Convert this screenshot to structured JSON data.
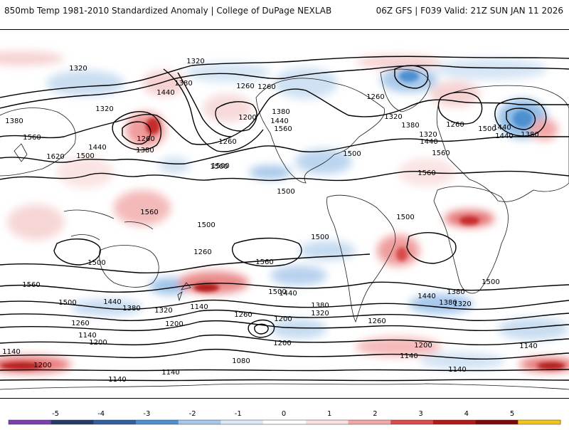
{
  "header": {
    "left_title": "850mb Temp 1981-2010 Standardized Anomaly | College of DuPage NEXLAB",
    "right_title": "06Z GFS | F039 Valid: 21Z SUN JAN 11 2026"
  },
  "contour_labels": [
    {
      "text": "1320",
      "id": "h1"
    },
    {
      "text": "1320",
      "id": "h2"
    },
    {
      "text": "1260",
      "id": "h3"
    },
    {
      "text": "1380",
      "id": "h4"
    },
    {
      "text": "1440",
      "id": "h5"
    },
    {
      "text": "1320",
      "id": "h6"
    },
    {
      "text": "1260",
      "id": "h7"
    },
    {
      "text": "1380",
      "id": "h8"
    },
    {
      "text": "1560",
      "id": "h9"
    },
    {
      "text": "1620",
      "id": "h10"
    },
    {
      "text": "1440",
      "id": "h11"
    },
    {
      "text": "1500",
      "id": "h12"
    },
    {
      "text": "1260",
      "id": "h13"
    },
    {
      "text": "1200",
      "id": "h14"
    },
    {
      "text": "1260",
      "id": "h15"
    },
    {
      "text": "1500",
      "id": "h16"
    },
    {
      "text": "1380",
      "id": "h17"
    },
    {
      "text": "1440",
      "id": "h18"
    },
    {
      "text": "1560",
      "id": "h19"
    },
    {
      "text": "1500",
      "id": "h20"
    },
    {
      "text": "1260",
      "id": "h21"
    },
    {
      "text": "1320",
      "id": "h22"
    },
    {
      "text": "1380",
      "id": "h23"
    },
    {
      "text": "1320",
      "id": "h24"
    },
    {
      "text": "1440",
      "id": "h25"
    },
    {
      "text": "1260",
      "id": "h26"
    },
    {
      "text": "1500",
      "id": "h27"
    },
    {
      "text": "1440",
      "id": "h28"
    },
    {
      "text": "1380",
      "id": "h29"
    },
    {
      "text": "1560",
      "id": "h30"
    },
    {
      "text": "1500",
      "id": "h31"
    },
    {
      "text": "1560",
      "id": "h32"
    },
    {
      "text": "1500",
      "id": "h33"
    },
    {
      "text": "1500",
      "id": "h34"
    },
    {
      "text": "1500",
      "id": "h35"
    },
    {
      "text": "1500",
      "id": "h36"
    },
    {
      "text": "1560",
      "id": "h37"
    },
    {
      "text": "1560",
      "id": "h38"
    },
    {
      "text": "1500",
      "id": "h39"
    },
    {
      "text": "1560",
      "id": "h40"
    },
    {
      "text": "1500",
      "id": "h41"
    },
    {
      "text": "1440",
      "id": "h42"
    },
    {
      "text": "1380",
      "id": "h43"
    },
    {
      "text": "1320",
      "id": "h44"
    },
    {
      "text": "1140",
      "id": "h45"
    },
    {
      "text": "1260",
      "id": "h46"
    },
    {
      "text": "1200",
      "id": "h47"
    },
    {
      "text": "1260",
      "id": "h48"
    },
    {
      "text": "1140",
      "id": "h49"
    },
    {
      "text": "1200",
      "id": "h50"
    },
    {
      "text": "1140",
      "id": "h51"
    },
    {
      "text": "1200",
      "id": "h52"
    },
    {
      "text": "1140",
      "id": "h53"
    },
    {
      "text": "1080",
      "id": "h54"
    },
    {
      "text": "1140",
      "id": "h55"
    },
    {
      "text": "1200",
      "id": "h56"
    },
    {
      "text": "1440",
      "id": "h57"
    },
    {
      "text": "1380",
      "id": "h58"
    },
    {
      "text": "1320",
      "id": "h59"
    },
    {
      "text": "1500",
      "id": "h60"
    },
    {
      "text": "1380",
      "id": "h61"
    },
    {
      "text": "1440",
      "id": "h62"
    },
    {
      "text": "1380",
      "id": "h63"
    },
    {
      "text": "1320",
      "id": "h64"
    },
    {
      "text": "1260",
      "id": "h65"
    },
    {
      "text": "1200",
      "id": "h66"
    },
    {
      "text": "1140",
      "id": "h67"
    },
    {
      "text": "1140",
      "id": "h68"
    },
    {
      "text": "1140",
      "id": "h69"
    },
    {
      "text": "1200",
      "id": "h70"
    },
    {
      "text": "1260",
      "id": "h71"
    },
    {
      "text": "1440",
      "id": "h72"
    },
    {
      "text": "1500",
      "id": "h73"
    },
    {
      "text": "1380",
      "id": "h74"
    }
  ],
  "colorbar": {
    "tick_labels": [
      "-5",
      "-4",
      "-3",
      "-2",
      "-1",
      "0",
      "1",
      "2",
      "3",
      "4",
      "5"
    ],
    "colors": [
      "#7b3fb0",
      "#233a6b",
      "#2f5f9e",
      "#4d8fd0",
      "#a6c8ec",
      "#dce9f6",
      "#ffffff",
      "#fbe0e0",
      "#f2a7a7",
      "#d74b4b",
      "#b21a1a",
      "#7a0a0a",
      "#f3c419"
    ]
  }
}
